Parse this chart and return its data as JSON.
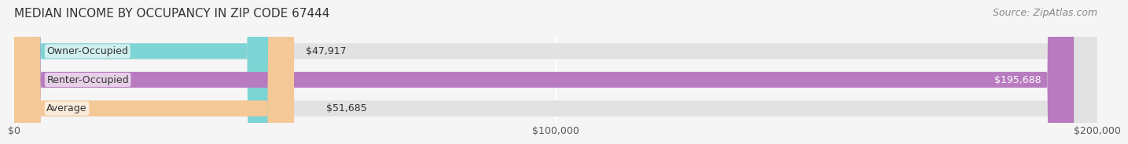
{
  "title": "MEDIAN INCOME BY OCCUPANCY IN ZIP CODE 67444",
  "source": "Source: ZipAtlas.com",
  "categories": [
    "Owner-Occupied",
    "Renter-Occupied",
    "Average"
  ],
  "values": [
    47917,
    195688,
    51685
  ],
  "bar_colors": [
    "#7dd4d4",
    "#b87bbf",
    "#f5c897"
  ],
  "value_labels": [
    "$47,917",
    "$195,688",
    "$51,685"
  ],
  "xlim": [
    0,
    200000
  ],
  "xtick_labels": [
    "$0",
    "$100,000",
    "$200,000"
  ],
  "background_color": "#f5f5f5",
  "bar_background_color": "#e2e2e2",
  "title_fontsize": 11,
  "source_fontsize": 9,
  "label_fontsize": 9,
  "value_fontsize": 9,
  "tick_fontsize": 9,
  "bar_height": 0.55,
  "rounding_size": 5000
}
